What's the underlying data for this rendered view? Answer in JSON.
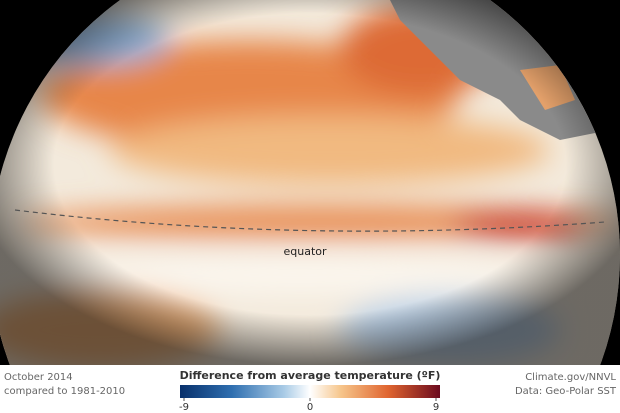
{
  "map": {
    "label": "equator"
  },
  "footer": {
    "date": "October 2014",
    "baseline": "compared to 1981-2010",
    "credit": "Climate.gov/NNVL",
    "source": "Data: Geo-Polar SST"
  },
  "legend": {
    "title": "Difference from average temperature (ºF)",
    "lim": [
      -9,
      9
    ],
    "ticks": [
      -9,
      0,
      9
    ]
  }
}
